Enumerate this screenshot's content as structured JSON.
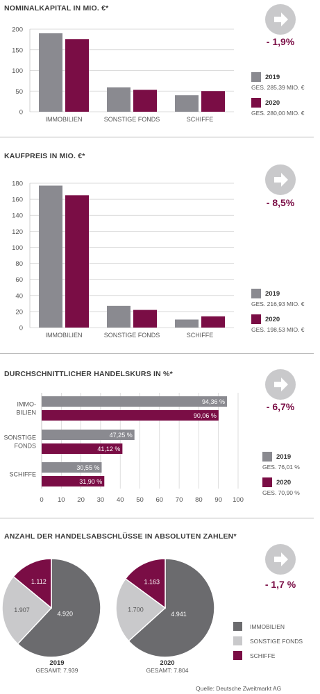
{
  "colors": {
    "gray": "#8a8a90",
    "maroon": "#7a0d45",
    "light_gray": "#c9c9cb",
    "dark_gray": "#6b6b6e"
  },
  "icon": "arrow-right-icon",
  "sections": [
    {
      "title": "NOMINALKAPITAL IN MIO. €*",
      "change": "- 1,9%",
      "legend": [
        {
          "year": "2019",
          "ges": "GES. 285,39 MIO. €"
        },
        {
          "year": "2020",
          "ges": "GES. 280,00 MIO. €"
        }
      ]
    },
    {
      "title": "KAUFPREIS IN MIO. €*",
      "change": "- 8,5%",
      "legend": [
        {
          "year": "2019",
          "ges": "GES. 216,93 MIO. €"
        },
        {
          "year": "2020",
          "ges": "GES. 198,53 MIO. €"
        }
      ]
    },
    {
      "title": "DURCHSCHNITTLICHER HANDELSKURS IN %*",
      "change": "- 6,7%",
      "legend": [
        {
          "year": "2019",
          "ges": "GES. 76,01 %"
        },
        {
          "year": "2020",
          "ges": "GES. 70,90 %"
        }
      ]
    },
    {
      "title": "ANZAHL DER HANDELSABSCHLÜSSE IN ABSOLUTEN ZAHLEN*",
      "change": "- 1,7 %",
      "legend": [
        {
          "label": "IMMOBILIEN"
        },
        {
          "label": "SONSTIGE FONDS"
        },
        {
          "label": "SCHIFFE"
        }
      ],
      "captions": [
        {
          "year": "2019",
          "total": "GESAMT: 7.939"
        },
        {
          "year": "2020",
          "total": "GESAMT: 7.804"
        }
      ]
    }
  ],
  "source": "Quelle: Deutsche Zweitmarkt AG",
  "chart_data": [
    {
      "type": "bar",
      "title": "NOMINALKAPITAL IN MIO. €*",
      "categories": [
        "IMMOBILIEN",
        "SONSTIGE FONDS",
        "SCHIFFE"
      ],
      "series": [
        {
          "name": "2019",
          "values": [
            190,
            59,
            40
          ]
        },
        {
          "name": "2020",
          "values": [
            176,
            53,
            50
          ]
        }
      ],
      "ylim": [
        0,
        200
      ],
      "yticks": [
        0,
        50,
        100,
        150,
        200
      ]
    },
    {
      "type": "bar",
      "title": "KAUFPREIS IN MIO. €*",
      "categories": [
        "IMMOBILIEN",
        "SONSTIGE FONDS",
        "SCHIFFE"
      ],
      "series": [
        {
          "name": "2019",
          "values": [
            177,
            27,
            10
          ]
        },
        {
          "name": "2020",
          "values": [
            165,
            22,
            14
          ]
        }
      ],
      "ylim": [
        0,
        180
      ],
      "yticks": [
        0,
        20,
        40,
        60,
        80,
        100,
        120,
        140,
        160,
        180
      ]
    },
    {
      "type": "bar",
      "orientation": "horizontal",
      "title": "DURCHSCHNITTLICHER HANDELSKURS IN %*",
      "categories": [
        "IMMO-|BILIEN",
        "SONSTIGE|FONDS",
        "SCHIFFE"
      ],
      "series": [
        {
          "name": "2019",
          "values": [
            94.36,
            47.25,
            30.55
          ],
          "labels": [
            "94,36 %",
            "47,25 %",
            "30,55 %"
          ]
        },
        {
          "name": "2020",
          "values": [
            90.06,
            41.12,
            31.9
          ],
          "labels": [
            "90,06 %",
            "41,12 %",
            "31,90 %"
          ]
        }
      ],
      "xlim": [
        0,
        100
      ],
      "xticks": [
        0,
        10,
        20,
        30,
        40,
        50,
        60,
        70,
        80,
        90,
        100
      ]
    },
    {
      "type": "pie",
      "title": "ANZAHL DER HANDELSABSCHLÜSSE IN ABSOLUTEN ZAHLEN*",
      "labels": [
        "IMMOBILIEN",
        "SONSTIGE FONDS",
        "SCHIFFE"
      ],
      "pies": [
        {
          "name": "2019",
          "values": [
            4920,
            1907,
            1112
          ],
          "value_labels": [
            "4.920",
            "1.907",
            "1.112"
          ]
        },
        {
          "name": "2020",
          "values": [
            4941,
            1700,
            1163
          ],
          "value_labels": [
            "4.941",
            "1.700",
            "1.163"
          ]
        }
      ]
    }
  ]
}
